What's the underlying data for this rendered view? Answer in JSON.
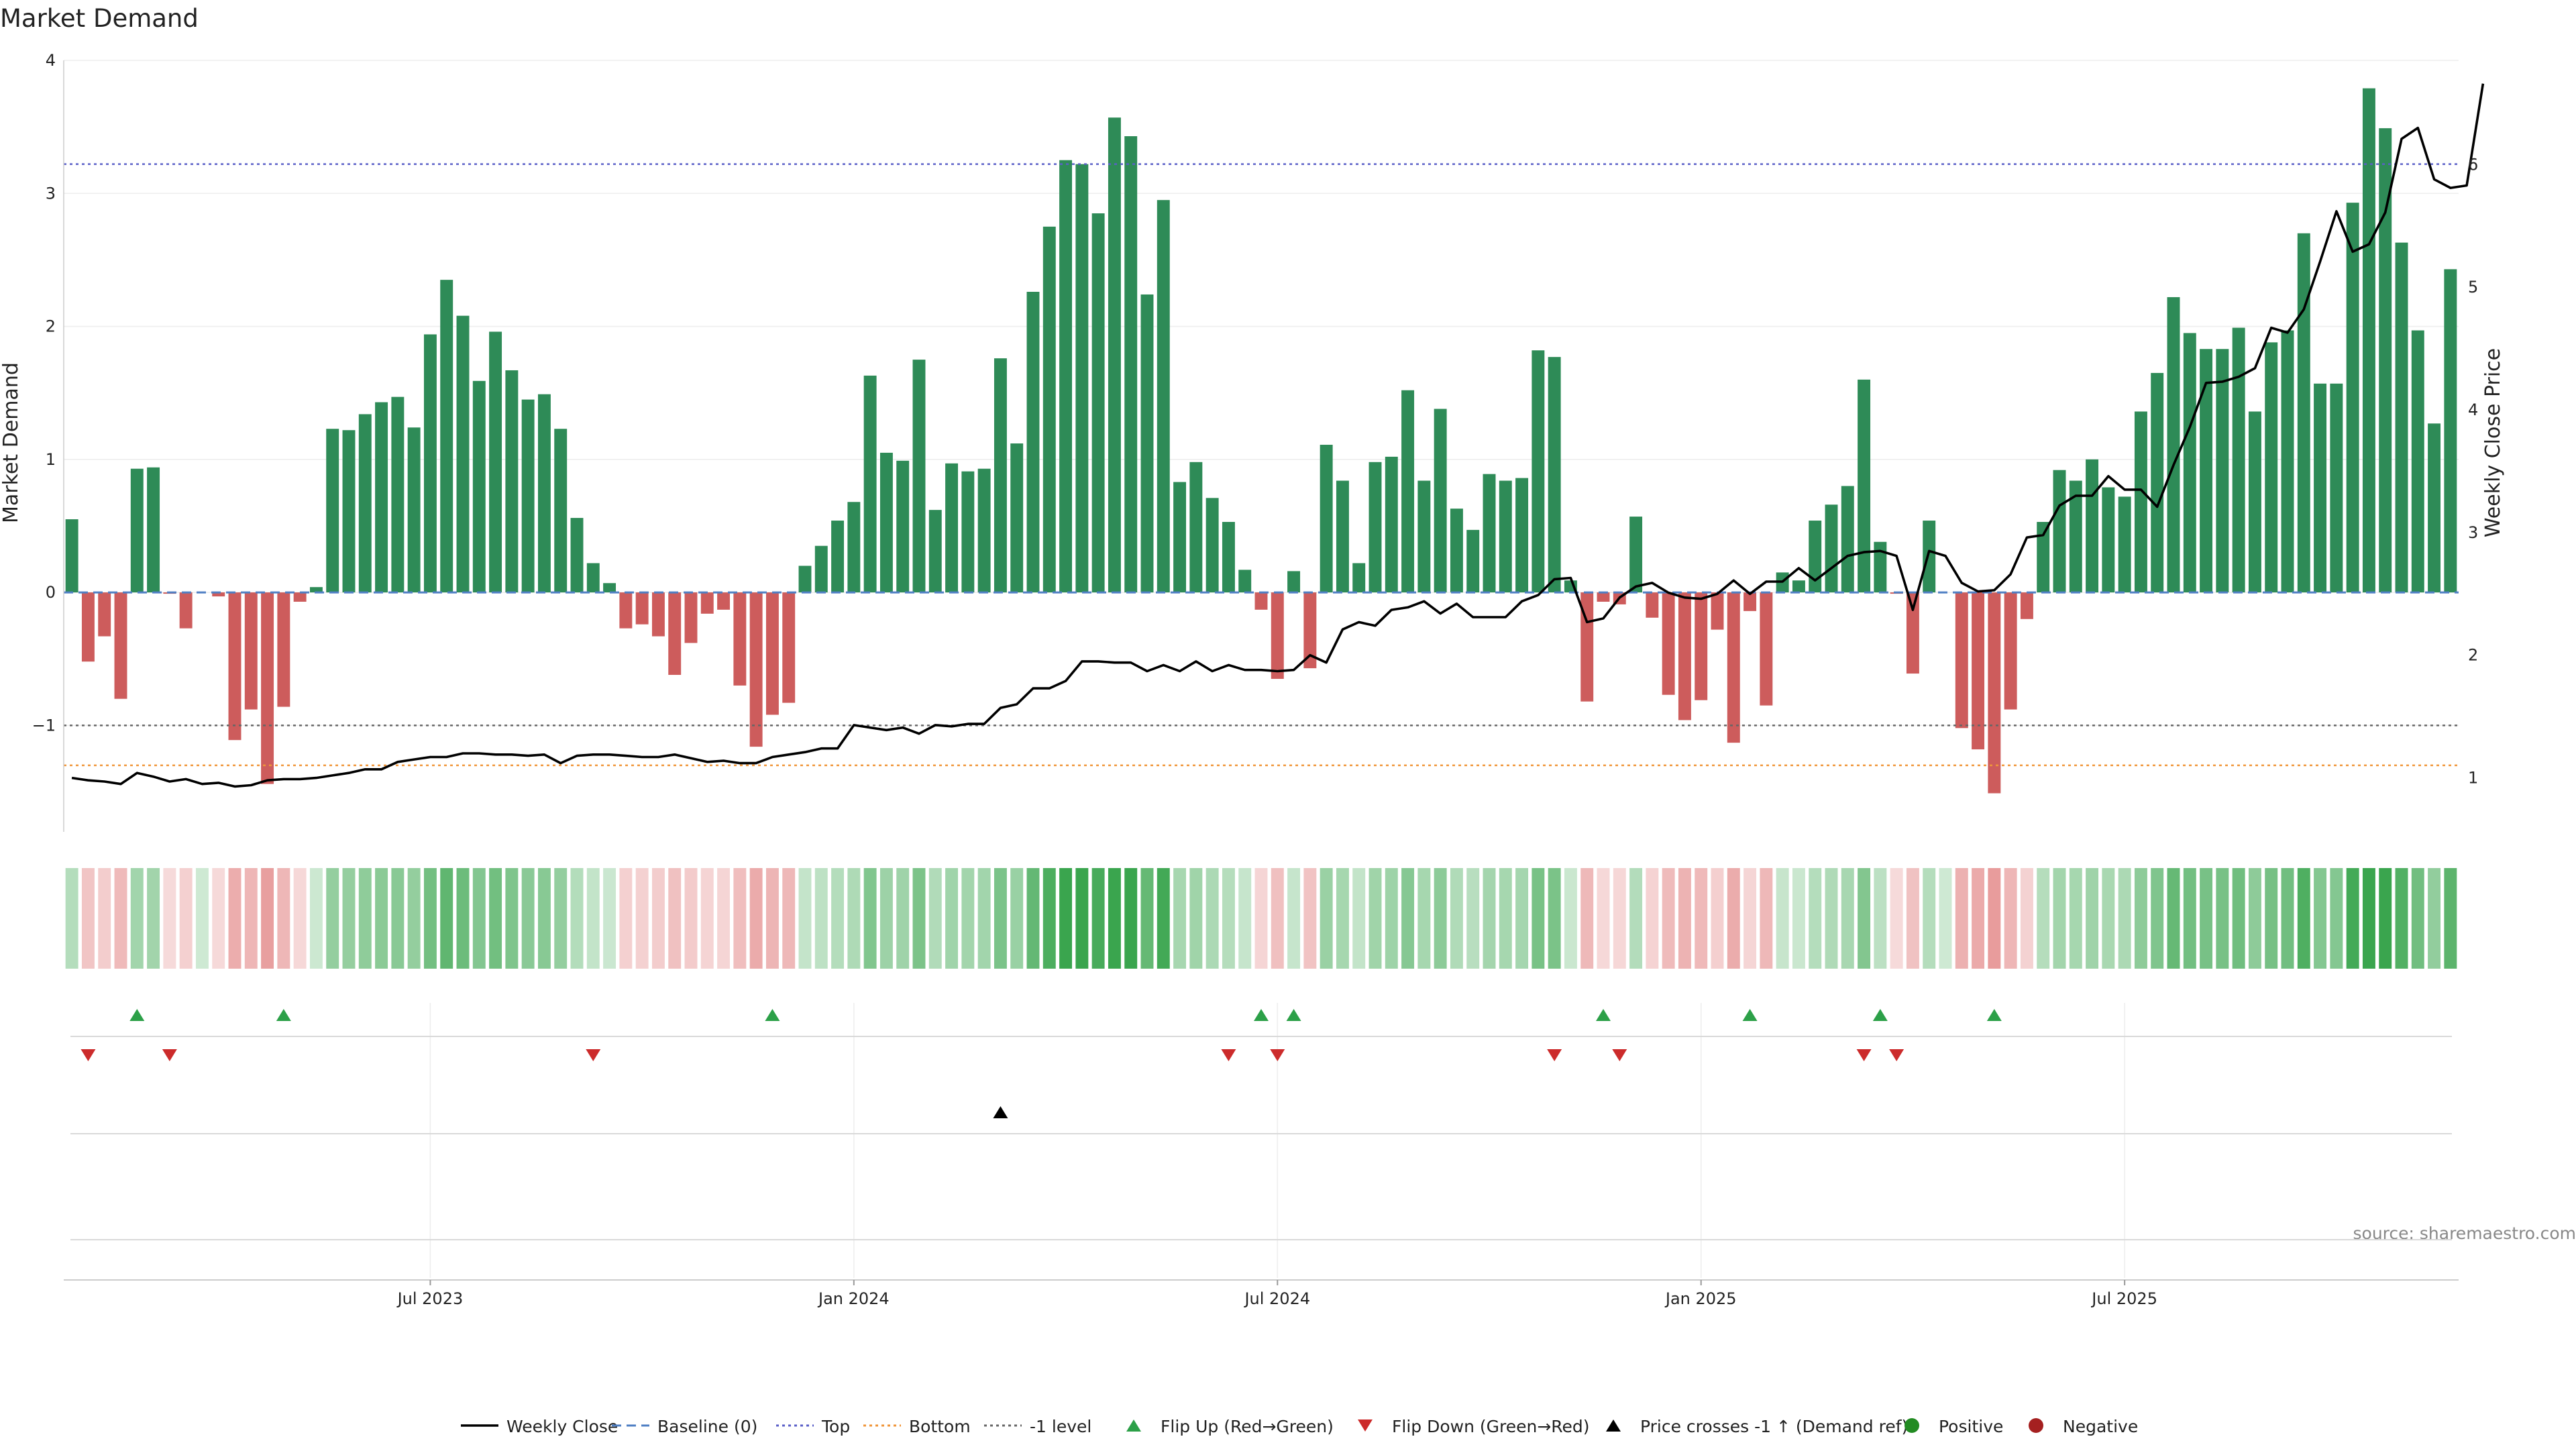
{
  "chart_data": {
    "type": "bar",
    "title": "Market Demand",
    "ylabel": "Market Demand",
    "y2label": "Weekly Close Price",
    "source": "source: sharemaestro.com",
    "ylim": [
      -1.8,
      4
    ],
    "y2lim": [
      0.56,
      6.85
    ],
    "y_ticks": [
      -1,
      0,
      1,
      2,
      3,
      4
    ],
    "y_tick_labels": [
      "−1",
      "0",
      "1",
      "2",
      "3",
      "4"
    ],
    "y2_ticks": [
      1,
      2,
      3,
      4,
      5,
      6
    ],
    "y2_tick_labels": [
      "1",
      "2",
      "3",
      "4",
      "5",
      "6"
    ],
    "x_tick_labels": [
      "Jul 2023",
      "Jan 2024",
      "Jul 2024",
      "Jan 2025",
      "Jul 2025"
    ],
    "x_tick_weeks": [
      22,
      48,
      74,
      100,
      126
    ],
    "grid": true,
    "legend_position": "bottom",
    "reference_lines": {
      "baseline": 0,
      "top": 3.22,
      "bottom": -1.3,
      "minus_one_level": -1
    },
    "series": [
      {
        "name": "Market Demand",
        "values": [
          0.55,
          -0.52,
          -0.33,
          -0.8,
          0.93,
          0.94,
          -0.01,
          -0.27,
          0,
          -0.03,
          -1.11,
          -0.88,
          -1.44,
          -0.86,
          -0.07,
          0.04,
          1.23,
          1.22,
          1.34,
          1.43,
          1.47,
          1.24,
          1.94,
          2.35,
          2.08,
          1.59,
          1.96,
          1.67,
          1.45,
          1.49,
          1.23,
          0.56,
          0.22,
          0.07,
          -0.27,
          -0.24,
          -0.33,
          -0.62,
          -0.38,
          -0.16,
          -0.13,
          -0.7,
          -1.16,
          -0.92,
          -0.83,
          0.2,
          0.35,
          0.54,
          0.68,
          1.63,
          1.05,
          0.99,
          1.75,
          0.62,
          0.97,
          0.91,
          0.93,
          1.76,
          1.12,
          2.26,
          2.75,
          3.25,
          3.22,
          2.85,
          3.57,
          3.43,
          2.24,
          2.95,
          0.83,
          0.98,
          0.71,
          0.53,
          0.17,
          -0.13,
          -0.65,
          0.16,
          -0.57,
          1.11,
          0.84,
          0.22,
          0.98,
          1.02,
          1.52,
          0.84,
          1.38,
          0.63,
          0.47,
          0.89,
          0.84,
          0.86,
          1.82,
          1.77,
          0.09,
          -0.82,
          -0.07,
          -0.09,
          0.57,
          -0.19,
          -0.77,
          -0.96,
          -0.81,
          -0.28,
          -1.13,
          -0.14,
          -0.85,
          0.15,
          0.09,
          0.54,
          0.66,
          0.8,
          1.6,
          0.38,
          -0.01,
          -0.61,
          0.54,
          0,
          -1.02,
          -1.18,
          -1.51,
          -0.88,
          -0.2,
          0.53,
          0.92,
          0.84,
          1,
          0.79,
          0.72,
          1.36,
          1.65,
          2.22,
          1.95,
          1.83,
          1.83,
          1.99,
          1.36,
          1.88,
          1.97,
          2.7,
          1.57,
          1.57,
          2.93,
          3.79,
          3.49,
          2.63,
          1.97,
          1.27,
          2.43
        ]
      },
      {
        "name": "Weekly Close",
        "values": [
          1.0,
          0.98,
          0.97,
          0.95,
          1.04,
          1.01,
          0.97,
          0.99,
          0.95,
          0.96,
          0.93,
          0.94,
          0.98,
          0.99,
          0.99,
          1.0,
          1.02,
          1.04,
          1.07,
          1.07,
          1.13,
          1.15,
          1.17,
          1.17,
          1.2,
          1.2,
          1.19,
          1.19,
          1.18,
          1.19,
          1.12,
          1.18,
          1.19,
          1.19,
          1.18,
          1.17,
          1.17,
          1.19,
          1.16,
          1.13,
          1.14,
          1.12,
          1.12,
          1.17,
          1.19,
          1.21,
          1.24,
          1.24,
          1.43,
          1.41,
          1.39,
          1.41,
          1.36,
          1.43,
          1.42,
          1.44,
          1.44,
          1.57,
          1.6,
          1.73,
          1.73,
          1.79,
          1.95,
          1.95,
          1.94,
          1.94,
          1.87,
          1.92,
          1.87,
          1.95,
          1.87,
          1.92,
          1.88,
          1.88,
          1.87,
          1.88,
          2.0,
          1.94,
          2.21,
          2.27,
          2.24,
          2.37,
          2.39,
          2.44,
          2.34,
          2.42,
          2.31,
          2.31,
          2.31,
          2.44,
          2.49,
          2.62,
          2.63,
          2.27,
          2.3,
          2.47,
          2.56,
          2.59,
          2.51,
          2.47,
          2.46,
          2.5,
          2.61,
          2.5,
          2.6,
          2.6,
          2.71,
          2.61,
          2.71,
          2.81,
          2.84,
          2.85,
          2.81,
          2.37,
          2.85,
          2.81,
          2.59,
          2.52,
          2.53,
          2.66,
          2.96,
          2.98,
          3.22,
          3.3,
          3.3,
          3.46,
          3.35,
          3.35,
          3.21,
          3.55,
          3.86,
          4.22,
          4.23,
          4.27,
          4.34,
          4.67,
          4.63,
          4.82,
          5.21,
          5.62,
          5.29,
          5.35,
          5.61,
          6.21,
          6.3,
          5.88,
          5.81,
          5.83,
          6.66
        ]
      }
    ],
    "demand_strip": {
      "positive_color": "#3aa54e",
      "negative_color": "#d85a5a",
      "labels": [
        "Positive",
        "Negative"
      ]
    },
    "events": {
      "flip_up": [
        4,
        13,
        43,
        73,
        75,
        94,
        103,
        111,
        118
      ],
      "flip_down": [
        1,
        6,
        32,
        71,
        74,
        91,
        95,
        110,
        112
      ],
      "price_crosses_minus_one_up": [
        57
      ]
    },
    "colors": {
      "positive_bar": "#2e8b57",
      "negative_bar": "#cd5c5c",
      "price_line": "#000000",
      "baseline": "#4f7fc4",
      "top": "#5a5fc8",
      "bottom": "#f0963a",
      "minus_one": "#666666",
      "flip_up": "#2ca048",
      "flip_down": "#cc2b2b",
      "price_cross": "#000000",
      "positive_dot": "#228b22",
      "negative_dot": "#a52020"
    },
    "legend": [
      {
        "key": "weekly_close",
        "label": "Weekly Close"
      },
      {
        "key": "baseline",
        "label": "Baseline (0)"
      },
      {
        "key": "top",
        "label": "Top"
      },
      {
        "key": "bottom",
        "label": "Bottom"
      },
      {
        "key": "minus_one",
        "label": "-1 level"
      },
      {
        "key": "flip_up",
        "label": "Flip Up (Red→Green)"
      },
      {
        "key": "flip_down",
        "label": "Flip Down (Green→Red)"
      },
      {
        "key": "price_cross",
        "label": "Price crosses -1 ↑ (Demand ref)"
      },
      {
        "key": "positive",
        "label": "Positive"
      },
      {
        "key": "negative",
        "label": "Negative"
      }
    ]
  }
}
